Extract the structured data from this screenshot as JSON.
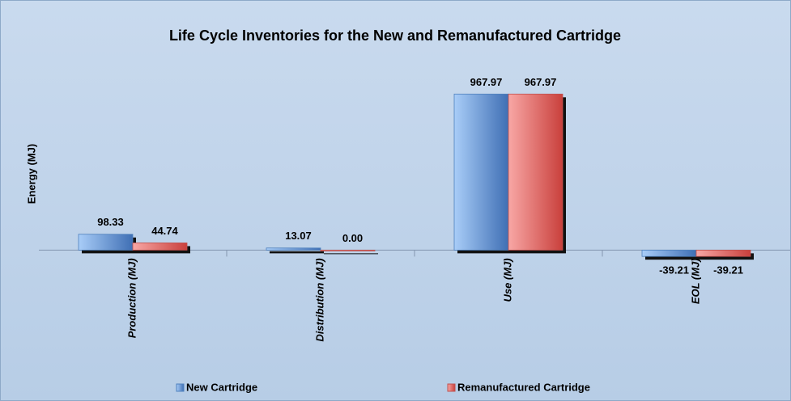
{
  "chart_data": {
    "type": "bar",
    "title": "Life Cycle Inventories for the New and Remanufactured Cartridge",
    "y_label": "Energy (MJ)",
    "categories": [
      "Production (MJ)",
      "Distribution (MJ)",
      "Use (MJ)",
      "EOL (MJ)"
    ],
    "series": [
      {
        "name": "New Cartridge",
        "color": "#4f81bd",
        "values": [
          98.33,
          13.07,
          967.97,
          -39.21
        ],
        "value_labels": [
          "98.33",
          "13.07",
          "967.97",
          "-39.21"
        ]
      },
      {
        "name": "Remanufactured Cartridge",
        "color": "#c0504d",
        "values": [
          44.74,
          0,
          967.97,
          -39.21
        ],
        "value_labels": [
          "44.74",
          "0.00",
          "967.97",
          "-39.21"
        ]
      }
    ],
    "ylim": [
      -100,
      1100
    ],
    "legend": "bottom"
  }
}
